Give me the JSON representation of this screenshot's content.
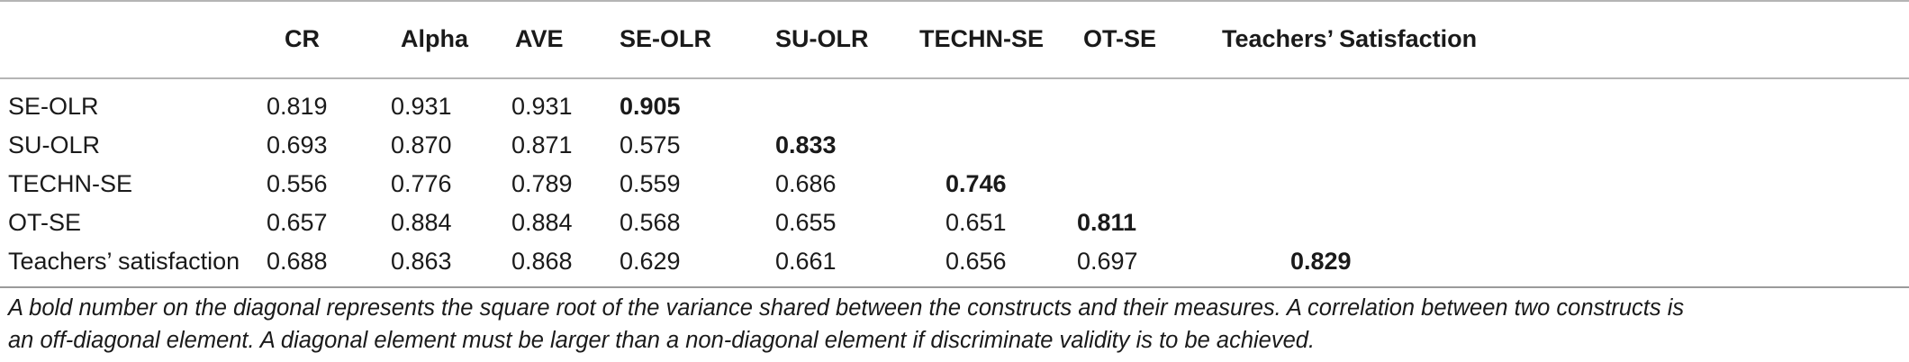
{
  "table": {
    "columns": [
      "",
      "CR",
      "Alpha",
      "AVE",
      "SE-OLR",
      "SU-OLR",
      "TECHN-SE",
      "OT-SE",
      "Teachers’ Satisfaction"
    ],
    "rows": [
      {
        "label": "SE-OLR",
        "cr": "0.819",
        "alpha": "0.931",
        "ave": "0.931",
        "se_olr": "0.905",
        "su_olr": "",
        "techn_se": "",
        "ot_se": "",
        "satisfaction": ""
      },
      {
        "label": "SU-OLR",
        "cr": "0.693",
        "alpha": "0.870",
        "ave": "0.871",
        "se_olr": "0.575",
        "su_olr": "0.833",
        "techn_se": "",
        "ot_se": "",
        "satisfaction": ""
      },
      {
        "label": "TECHN-SE",
        "cr": "0.556",
        "alpha": "0.776",
        "ave": "0.789",
        "se_olr": "0.559",
        "su_olr": "0.686",
        "techn_se": "0.746",
        "ot_se": "",
        "satisfaction": ""
      },
      {
        "label": "OT-SE",
        "cr": "0.657",
        "alpha": "0.884",
        "ave": "0.884",
        "se_olr": "0.568",
        "su_olr": "0.655",
        "techn_se": "0.651",
        "ot_se": "0.811",
        "satisfaction": ""
      },
      {
        "label": "Teachers’ satisfaction",
        "cr": "0.688",
        "alpha": "0.863",
        "ave": "0.868",
        "se_olr": "0.629",
        "su_olr": "0.661",
        "techn_se": "0.656",
        "ot_se": "0.697",
        "satisfaction": "0.829"
      }
    ]
  },
  "footnote": {
    "line1": "A bold number on the diagonal represents the square root of the variance shared between the constructs and their measures. A correlation between two constructs is",
    "line2": "an off-diagonal element. A diagonal element must be larger than a non-diagonal element if discriminate validity is to be achieved."
  }
}
